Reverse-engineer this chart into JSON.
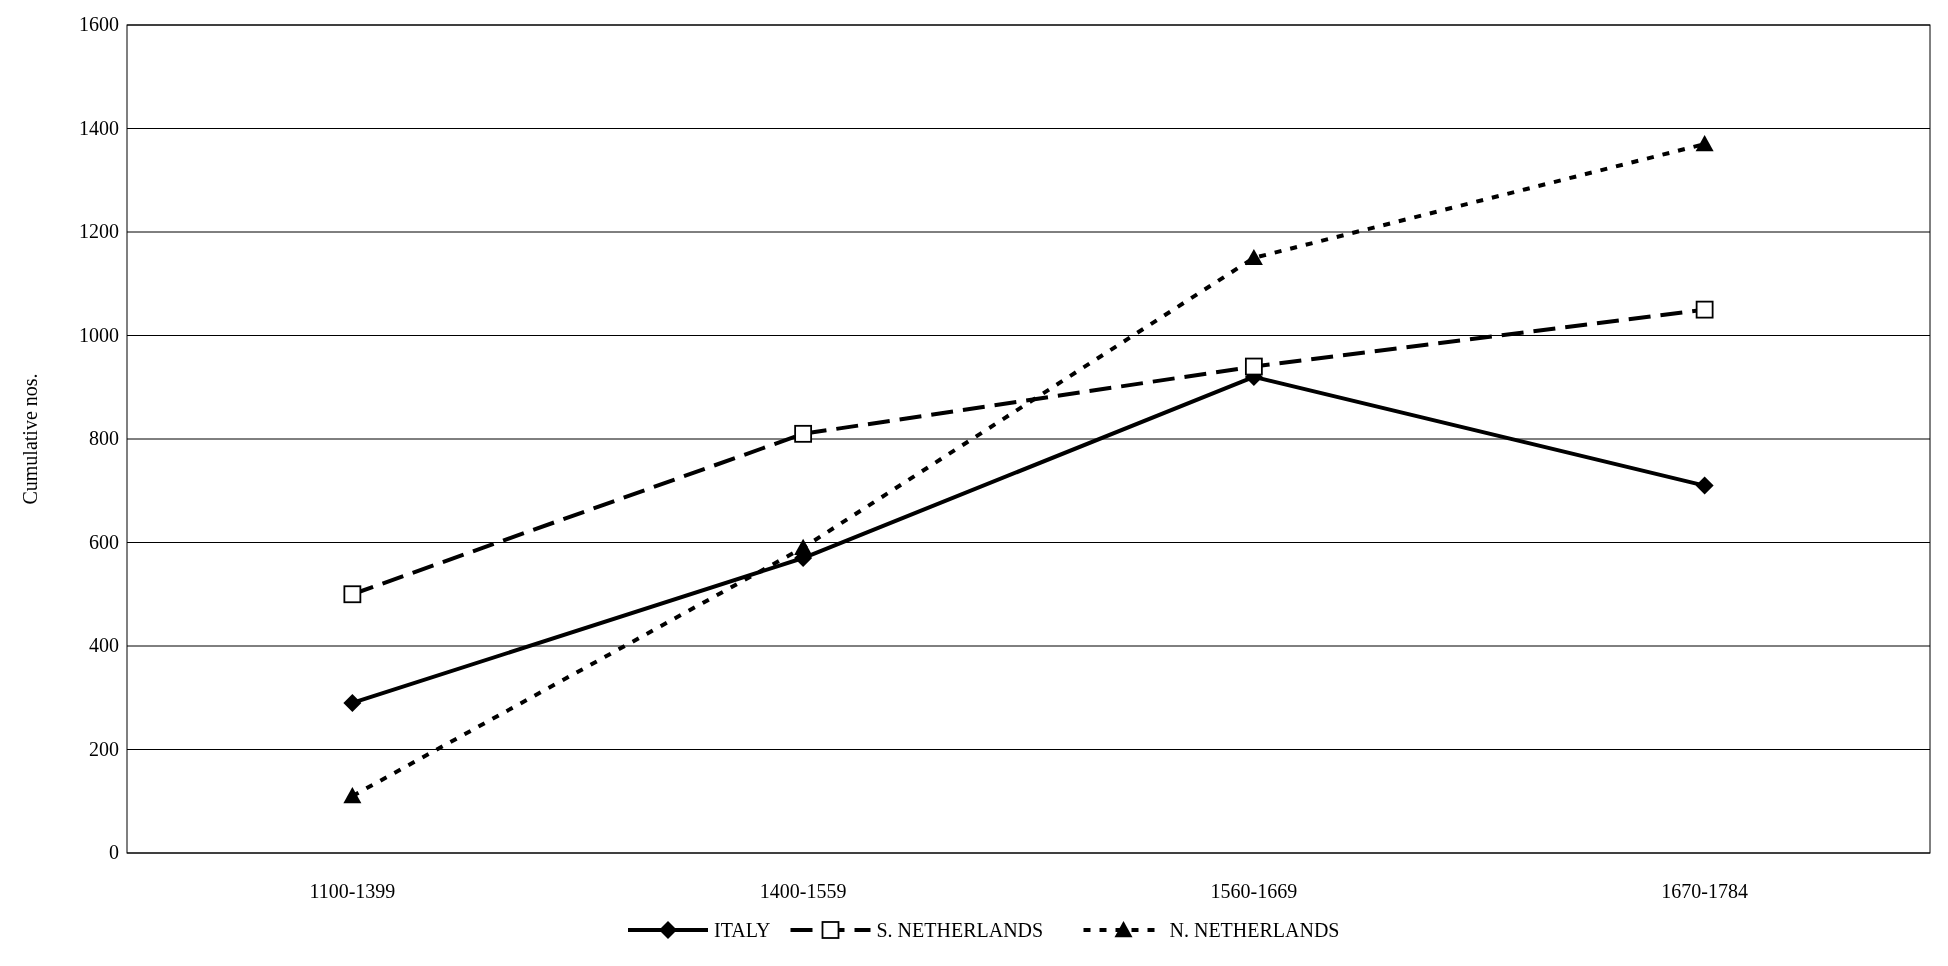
{
  "chart_data": {
    "type": "line",
    "ylabel": "Cumulative nos.",
    "categories": [
      "1100-1399",
      "1400-1559",
      "1560-1669",
      "1670-1784"
    ],
    "series": [
      {
        "name": "ITALY",
        "color": "#000000",
        "values": [
          290,
          570,
          920,
          710
        ],
        "marker": "diamond",
        "line_style": "solid"
      },
      {
        "name": "S. NETHERLANDS",
        "color": "#000000",
        "values": [
          500,
          810,
          940,
          1050
        ],
        "marker": "square",
        "line_style": "dashed"
      },
      {
        "name": "N. NETHERLANDS",
        "color": "#000000",
        "values": [
          110,
          590,
          1150,
          1370
        ],
        "marker": "triangle",
        "line_style": "dotted"
      }
    ],
    "ylim": [
      0,
      1600
    ],
    "yticks": [
      0,
      200,
      400,
      600,
      800,
      1000,
      1200,
      1400,
      1600
    ],
    "grid": "y",
    "legend": "bottom"
  }
}
